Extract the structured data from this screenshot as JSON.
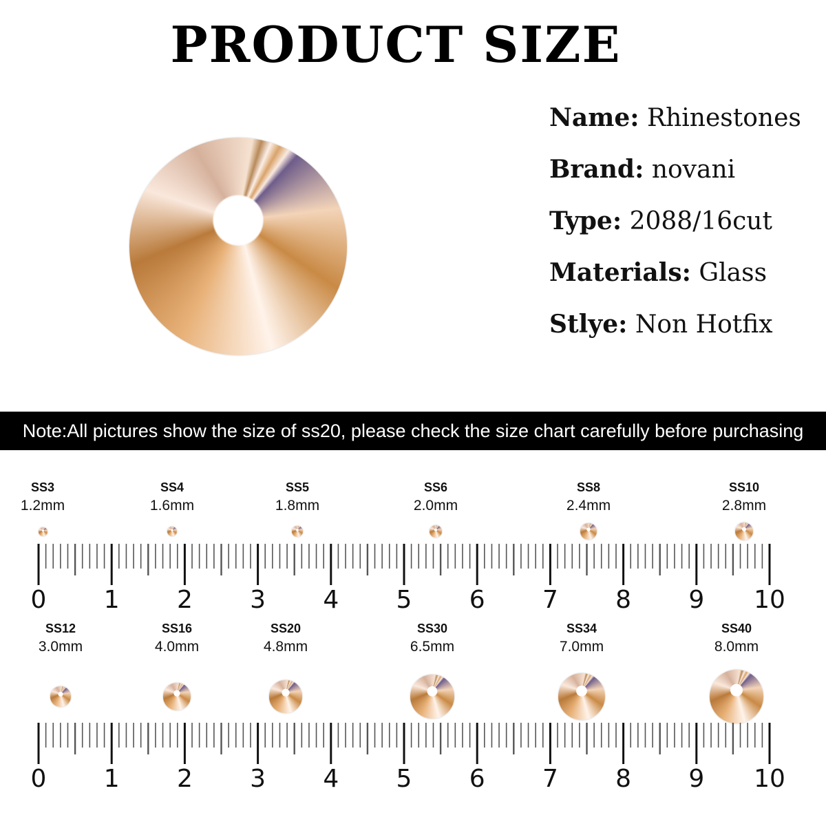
{
  "title": "PRODUCT SIZE",
  "specs": [
    {
      "label": "Name:",
      "value": "Rhinestones"
    },
    {
      "label": "Brand:",
      "value": "novani"
    },
    {
      "label": "Type:",
      "value": "2088/16cut"
    },
    {
      "label": "Materials:",
      "value": "Glass"
    },
    {
      "label": "Stlye:",
      "value": "Non Hotfix"
    }
  ],
  "note": "Note:All pictures show the size of ss20, please check the size chart carefully before purchasing",
  "rulers": [
    {
      "items": [
        {
          "ss": "SS3",
          "mm": "1.2mm",
          "mmv": 1.2
        },
        {
          "ss": "SS4",
          "mm": "1.6mm",
          "mmv": 1.6
        },
        {
          "ss": "SS5",
          "mm": "1.8mm",
          "mmv": 1.8
        },
        {
          "ss": "SS6",
          "mm": "2.0mm",
          "mmv": 2.0
        },
        {
          "ss": "SS8",
          "mm": "2.4mm",
          "mmv": 2.4
        },
        {
          "ss": "SS10",
          "mm": "2.8mm",
          "mmv": 2.8
        }
      ]
    },
    {
      "items": [
        {
          "ss": "SS12",
          "mm": "3.0mm",
          "mmv": 3.0
        },
        {
          "ss": "SS16",
          "mm": "4.0mm",
          "mmv": 4.0
        },
        {
          "ss": "SS20",
          "mm": "4.8mm",
          "mmv": 4.8
        },
        {
          "ss": "SS30",
          "mm": "6.5mm",
          "mmv": 6.5
        },
        {
          "ss": "SS34",
          "mm": "7.0mm",
          "mmv": 7.0
        },
        {
          "ss": "SS40",
          "mm": "8.0mm",
          "mmv": 8.0
        }
      ]
    }
  ],
  "ruler_labels": [
    "0",
    "1",
    "2",
    "3",
    "4",
    "5",
    "6",
    "7",
    "8",
    "9",
    "10"
  ],
  "accent_color": "#000000"
}
